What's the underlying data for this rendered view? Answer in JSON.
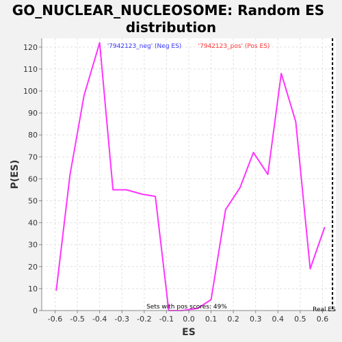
{
  "chart_data": {
    "type": "line",
    "title_lines": [
      "GO_NUCLEAR_NUCLEOSOME: Random ES",
      "distribution"
    ],
    "xlabel": "ES",
    "ylabel": "P(ES)",
    "xlim": [
      -0.66,
      0.66
    ],
    "ylim": [
      0,
      124
    ],
    "x_ticks": [
      -0.6,
      -0.5,
      -0.4,
      -0.3,
      -0.2,
      -0.1,
      0.0,
      0.1,
      0.2,
      0.3,
      0.4,
      0.5,
      0.6
    ],
    "x_tick_labels": [
      "-0.6",
      "-0.5",
      "-0.4",
      "-0.3",
      "-0.2",
      "-0.1",
      "0.0",
      "0.1",
      "0.2",
      "0.3",
      "0.4",
      "0.5",
      "0.6"
    ],
    "y_ticks": [
      0,
      10,
      20,
      30,
      40,
      50,
      60,
      70,
      80,
      90,
      100,
      110,
      120
    ],
    "y_tick_labels": [
      "0",
      "10",
      "20",
      "30",
      "40",
      "50",
      "60",
      "70",
      "80",
      "90",
      "100",
      "110",
      "120"
    ],
    "grid": true,
    "legend": [
      {
        "label": "'7942123_neg' (Neg ES)",
        "color": "#3333ff"
      },
      {
        "label": "'7942123_pos' (Pos ES)",
        "color": "#ff3333"
      }
    ],
    "series": [
      {
        "color": "#ff33ff",
        "x": [
          -0.595,
          -0.533,
          -0.47,
          -0.4,
          -0.34,
          -0.28,
          -0.21,
          -0.15,
          -0.09,
          -0.03,
          0.04,
          0.1,
          0.165,
          0.23,
          0.29,
          0.355,
          0.415,
          0.48,
          0.545,
          0.61
        ],
        "y": [
          9,
          62,
          98,
          122,
          55,
          55,
          53,
          52,
          0,
          0,
          1,
          5,
          46,
          56,
          72,
          62,
          108,
          86,
          19,
          38
        ]
      }
    ],
    "real_es": {
      "x": 0.645,
      "label": "Real ES",
      "color": "#000000"
    },
    "annotation": "Sets with pos scores: 49%"
  }
}
